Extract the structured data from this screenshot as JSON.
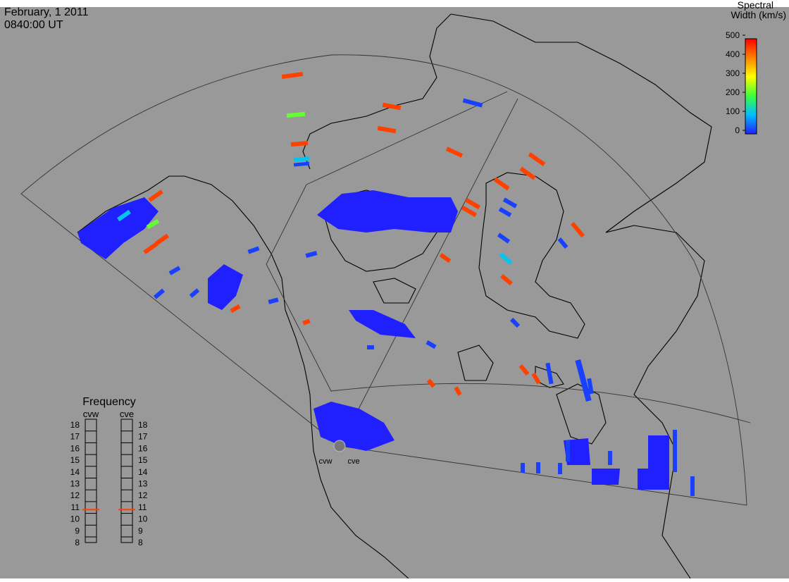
{
  "header": {
    "date": "February, 1 2011",
    "time": "0840:00 UT"
  },
  "colorbar": {
    "title": [
      "Spectral",
      "Width (km/s)"
    ],
    "range": [
      0,
      500
    ],
    "ticks": [
      0,
      100,
      200,
      300,
      400,
      500
    ]
  },
  "frequency": {
    "title": "Frequency",
    "range": [
      8,
      18
    ],
    "ticks": [
      8,
      9,
      10,
      11,
      12,
      13,
      14,
      15,
      16,
      17,
      18
    ],
    "radars": [
      {
        "name": "cvw",
        "value": 10.8
      },
      {
        "name": "cve",
        "value": 10.8
      }
    ]
  },
  "radar_labels": [
    "cvw",
    "cve"
  ],
  "echoes": [
    450,
    450,
    450,
    450,
    450,
    450,
    450,
    450,
    450,
    450,
    450,
    450,
    450,
    450,
    450,
    450,
    450,
    450,
    450,
    450,
    450,
    450,
    220,
    220,
    110,
    110,
    110,
    20,
    20,
    20,
    20,
    20,
    20,
    20,
    20,
    20,
    20,
    20,
    20,
    20,
    20,
    20,
    20,
    20,
    20,
    20,
    20,
    20,
    20,
    20,
    20,
    20
  ]
}
